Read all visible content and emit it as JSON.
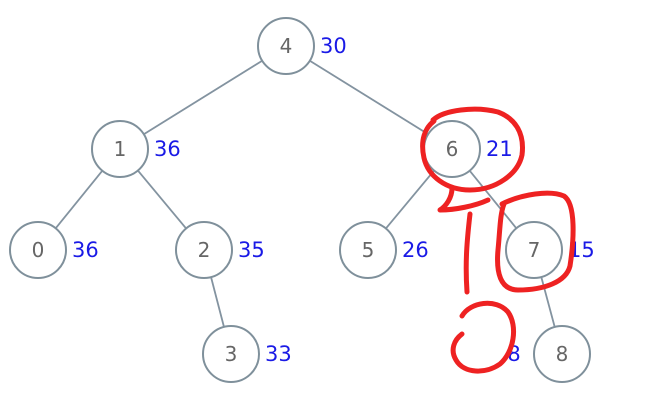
{
  "tree": {
    "nodes": [
      {
        "id": "4",
        "key": "4",
        "value": "30"
      },
      {
        "id": "1",
        "key": "1",
        "value": "36"
      },
      {
        "id": "6",
        "key": "6",
        "value": "21"
      },
      {
        "id": "0",
        "key": "0",
        "value": "36"
      },
      {
        "id": "2",
        "key": "2",
        "value": "35"
      },
      {
        "id": "5",
        "key": "5",
        "value": "26"
      },
      {
        "id": "7",
        "key": "7",
        "value": "15"
      },
      {
        "id": "3",
        "key": "3",
        "value": "33"
      },
      {
        "id": "8",
        "key": "8",
        "value": "8"
      }
    ],
    "edges": [
      {
        "from": "4",
        "to": "1"
      },
      {
        "from": "4",
        "to": "6"
      },
      {
        "from": "1",
        "to": "0"
      },
      {
        "from": "1",
        "to": "2"
      },
      {
        "from": "2",
        "to": "3"
      },
      {
        "from": "6",
        "to": "5"
      },
      {
        "from": "6",
        "to": "7"
      },
      {
        "from": "7",
        "to": "8"
      }
    ]
  },
  "colors": {
    "node_stroke": "#7f909b",
    "edge": "#8393a0",
    "key_text": "#666666",
    "value_text": "#1a1ae6",
    "annotation": "#ee2222"
  }
}
